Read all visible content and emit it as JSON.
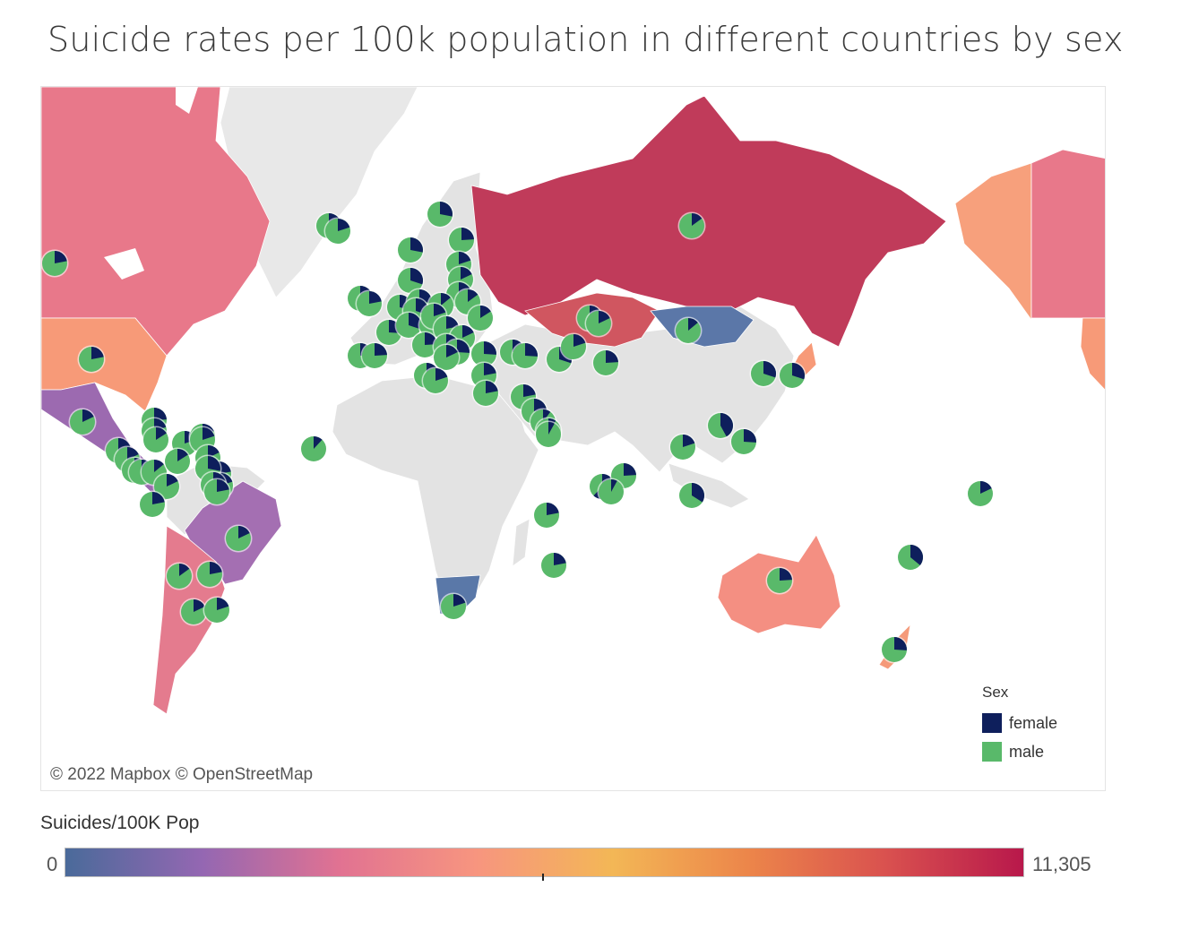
{
  "title": "Suicide rates per 100k population in different countries by sex",
  "map": {
    "attribution": "© 2022 Mapbox © OpenStreetMap"
  },
  "legend": {
    "title": "Sex",
    "items": [
      {
        "label": "female",
        "color": "#0e1f5c"
      },
      {
        "label": "male",
        "color": "#59b96a"
      }
    ]
  },
  "color_scale": {
    "title": "Suicides/100K Pop",
    "min_label": "0",
    "max_label": "11,305",
    "stops": [
      "#4a6a9a",
      "#9467b2",
      "#e17292",
      "#f7957f",
      "#f3b756",
      "#ec854a",
      "#d9514f",
      "#b8184b"
    ]
  },
  "regions": [
    {
      "name": "Russia",
      "color": "#c03b5a"
    },
    {
      "name": "Kazakhstan",
      "color": "#d05660"
    },
    {
      "name": "Mongolia",
      "color": "#5b77a8"
    },
    {
      "name": "Canada",
      "color": "#e8788a"
    },
    {
      "name": "United States",
      "color": "#f79a78"
    },
    {
      "name": "Alaska",
      "color": "#f7a07c"
    },
    {
      "name": "Mexico",
      "color": "#9c6ab0"
    },
    {
      "name": "Brazil",
      "color": "#a46fb2"
    },
    {
      "name": "Argentina / Chile",
      "color": "#e47b8e"
    },
    {
      "name": "Australia",
      "color": "#f48f82"
    },
    {
      "name": "New Zealand",
      "color": "#f59a7a"
    },
    {
      "name": "South Africa",
      "color": "#5a78a8"
    },
    {
      "name": "Greenland",
      "color": "#e8e8e8"
    },
    {
      "name": "Africa / Asia (no data)",
      "color": "#e3e3e3"
    }
  ],
  "chart_data": {
    "type": "map-pie",
    "series": [
      "female",
      "male"
    ],
    "markers": [
      {
        "place": "Canada",
        "female_share": 0.22
      },
      {
        "place": "United States",
        "female_share": 0.22
      },
      {
        "place": "Mexico",
        "female_share": 0.18
      },
      {
        "place": "Greenland",
        "female_share": 0.25
      },
      {
        "place": "Iceland",
        "female_share": 0.2
      },
      {
        "place": "Norway",
        "female_share": 0.28
      },
      {
        "place": "Sweden",
        "female_share": 0.28
      },
      {
        "place": "Finland",
        "female_share": 0.24
      },
      {
        "place": "Estonia",
        "female_share": 0.2
      },
      {
        "place": "Latvia",
        "female_share": 0.18
      },
      {
        "place": "Lithuania",
        "female_share": 0.17
      },
      {
        "place": "United Kingdom",
        "female_share": 0.24
      },
      {
        "place": "Ireland",
        "female_share": 0.22
      },
      {
        "place": "Netherlands",
        "female_share": 0.3
      },
      {
        "place": "Belgium",
        "female_share": 0.28
      },
      {
        "place": "Germany",
        "female_share": 0.26
      },
      {
        "place": "Denmark",
        "female_share": 0.3
      },
      {
        "place": "Poland",
        "female_share": 0.14
      },
      {
        "place": "Belarus",
        "female_share": 0.15
      },
      {
        "place": "Ukraine",
        "female_share": 0.16
      },
      {
        "place": "France",
        "female_share": 0.26
      },
      {
        "place": "Switzerland",
        "female_share": 0.3
      },
      {
        "place": "Austria",
        "female_share": 0.27
      },
      {
        "place": "Czechia",
        "female_share": 0.2
      },
      {
        "place": "Hungary",
        "female_share": 0.22
      },
      {
        "place": "Romania",
        "female_share": 0.18
      },
      {
        "place": "Italy",
        "female_share": 0.24
      },
      {
        "place": "Spain",
        "female_share": 0.24
      },
      {
        "place": "Portugal",
        "female_share": 0.24
      },
      {
        "place": "Croatia",
        "female_share": 0.24
      },
      {
        "place": "Serbia",
        "female_share": 0.26
      },
      {
        "place": "Bulgaria",
        "female_share": 0.26
      },
      {
        "place": "Greece",
        "female_share": 0.18
      },
      {
        "place": "Turkey",
        "female_share": 0.3
      },
      {
        "place": "Malta",
        "female_share": 0.2
      },
      {
        "place": "Cyprus",
        "female_share": 0.22
      },
      {
        "place": "Israel",
        "female_share": 0.22
      },
      {
        "place": "Georgia",
        "female_share": 0.2
      },
      {
        "place": "Armenia",
        "female_share": 0.26
      },
      {
        "place": "Azerbaijan",
        "female_share": 0.3
      },
      {
        "place": "Turkmenistan",
        "female_share": 0.2
      },
      {
        "place": "Uzbekistan",
        "female_share": 0.24
      },
      {
        "place": "Kyrgyzstan",
        "female_share": 0.22
      },
      {
        "place": "Kazakhstan",
        "female_share": 0.18
      },
      {
        "place": "Russia",
        "female_share": 0.15
      },
      {
        "place": "Mongolia",
        "female_share": 0.14
      },
      {
        "place": "Kuwait",
        "female_share": 0.22
      },
      {
        "place": "Bahrain",
        "female_share": 0.26
      },
      {
        "place": "Qatar",
        "female_share": 0.1
      },
      {
        "place": "United Arab Emirates",
        "female_share": 0.1
      },
      {
        "place": "Oman",
        "female_share": 0.08
      },
      {
        "place": "Maldives",
        "female_share": 0.62
      },
      {
        "place": "Sri Lanka",
        "female_share": 0.24
      },
      {
        "place": "Thailand",
        "female_share": 0.2
      },
      {
        "place": "Philippines",
        "female_share": 0.26
      },
      {
        "place": "Macau",
        "female_share": 0.42
      },
      {
        "place": "Singapore",
        "female_share": 0.34
      },
      {
        "place": "South Korea",
        "female_share": 0.3
      },
      {
        "place": "Japan",
        "female_share": 0.3
      },
      {
        "place": "Australia",
        "female_share": 0.24
      },
      {
        "place": "New Zealand",
        "female_share": 0.26
      },
      {
        "place": "Fiji",
        "female_share": 0.36
      },
      {
        "place": "Kiribati",
        "female_share": 0.18
      },
      {
        "place": "Cabo Verde",
        "female_share": 0.12
      },
      {
        "place": "Seychelles",
        "female_share": 0.08
      },
      {
        "place": "Mauritius",
        "female_share": 0.22
      },
      {
        "place": "Reunion",
        "female_share": 0.22
      },
      {
        "place": "South Africa",
        "female_share": 0.2
      },
      {
        "place": "Cuba",
        "female_share": 0.24
      },
      {
        "place": "Bahamas",
        "female_share": 0.2
      },
      {
        "place": "Jamaica",
        "female_share": 0.16
      },
      {
        "place": "Haiti",
        "female_share": 0.2
      },
      {
        "place": "Puerto Rico",
        "female_share": 0.18
      },
      {
        "place": "Antigua and Barbuda",
        "female_share": 0.2
      },
      {
        "place": "Saint Lucia",
        "female_share": 0.18
      },
      {
        "place": "Grenada",
        "female_share": 0.22
      },
      {
        "place": "Barbados",
        "female_share": 0.28
      },
      {
        "place": "Trinidad and Tobago",
        "female_share": 0.2
      },
      {
        "place": "Guatemala",
        "female_share": 0.2
      },
      {
        "place": "Belize",
        "female_share": 0.18
      },
      {
        "place": "El Salvador",
        "female_share": 0.2
      },
      {
        "place": "Nicaragua",
        "female_share": 0.18
      },
      {
        "place": "Costa Rica",
        "female_share": 0.14
      },
      {
        "place": "Panama",
        "female_share": 0.16
      },
      {
        "place": "Colombia",
        "female_share": 0.18
      },
      {
        "place": "Ecuador",
        "female_share": 0.22
      },
      {
        "place": "Guyana",
        "female_share": 0.2
      },
      {
        "place": "Suriname",
        "female_share": 0.22
      },
      {
        "place": "Brazil",
        "female_share": 0.18
      },
      {
        "place": "Paraguay",
        "female_share": 0.22
      },
      {
        "place": "Chile",
        "female_share": 0.15
      },
      {
        "place": "Argentina",
        "female_share": 0.18
      },
      {
        "place": "Uruguay",
        "female_share": 0.2
      }
    ]
  }
}
